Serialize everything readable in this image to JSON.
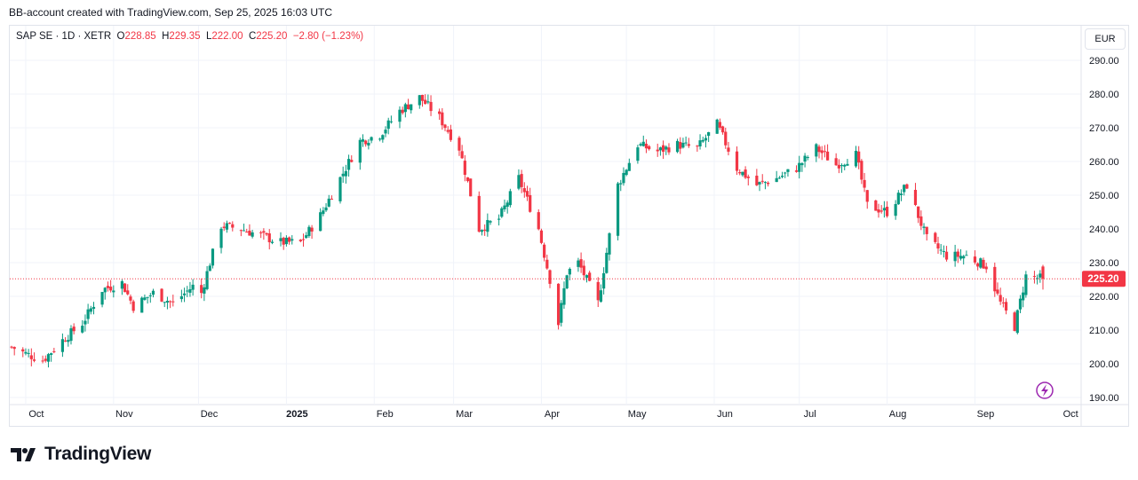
{
  "header": {
    "credit": "BB-account created with TradingView.com, Sep 25, 2025 16:03 UTC"
  },
  "legend": {
    "symbol": "SAP SE · 1D · XETR",
    "o_label": "O",
    "o_value": "228.85",
    "h_label": "H",
    "h_value": "229.35",
    "l_label": "L",
    "l_value": "222.00",
    "c_label": "C",
    "c_value": "225.20",
    "change": "−2.80 (−1.23%)"
  },
  "currency": "EUR",
  "footer": {
    "brand": "TradingView"
  },
  "colors": {
    "up": "#089981",
    "down": "#f23645",
    "grid": "#f0f3fa",
    "text": "#131722"
  },
  "chart_data": {
    "type": "candlestick",
    "y_ticks": [
      "290.00",
      "280.00",
      "270.00",
      "260.00",
      "250.00",
      "240.00",
      "230.00",
      "220.00",
      "210.00",
      "200.00",
      "190.00"
    ],
    "ylim": [
      187,
      295
    ],
    "x_ticks": [
      "Oct",
      "Nov",
      "Dec",
      "2025",
      "Feb",
      "Mar",
      "Apr",
      "May",
      "Jun",
      "Jul",
      "Aug",
      "Sep",
      "Oct"
    ],
    "last_price": 225.2,
    "last_price_label": "225.20",
    "close_path": [
      [
        "2024-09-26",
        205
      ],
      [
        "2024-10-01",
        203
      ],
      [
        "2024-10-07",
        201
      ],
      [
        "2024-10-14",
        207
      ],
      [
        "2024-10-21",
        212
      ],
      [
        "2024-10-28",
        222
      ],
      [
        "2024-11-04",
        224
      ],
      [
        "2024-11-08",
        217
      ],
      [
        "2024-11-15",
        221
      ],
      [
        "2024-11-22",
        218
      ],
      [
        "2024-11-29",
        223
      ],
      [
        "2024-12-02",
        221
      ],
      [
        "2024-12-05",
        230
      ],
      [
        "2024-12-09",
        241
      ],
      [
        "2024-12-16",
        240
      ],
      [
        "2024-12-23",
        238
      ],
      [
        "2024-12-30",
        236
      ],
      [
        "2025-01-06",
        236
      ],
      [
        "2025-01-13",
        244
      ],
      [
        "2025-01-20",
        255
      ],
      [
        "2025-01-27",
        266
      ],
      [
        "2025-02-03",
        268
      ],
      [
        "2025-02-10",
        275
      ],
      [
        "2025-02-17",
        279
      ],
      [
        "2025-02-24",
        273
      ],
      [
        "2025-03-03",
        264
      ],
      [
        "2025-03-10",
        240
      ],
      [
        "2025-03-17",
        243
      ],
      [
        "2025-03-24",
        255
      ],
      [
        "2025-03-31",
        240
      ],
      [
        "2025-04-04",
        225
      ],
      [
        "2025-04-07",
        212
      ],
      [
        "2025-04-10",
        227
      ],
      [
        "2025-04-14",
        230
      ],
      [
        "2025-04-21",
        218
      ],
      [
        "2025-04-28",
        253
      ],
      [
        "2025-05-05",
        265
      ],
      [
        "2025-05-12",
        263
      ],
      [
        "2025-05-19",
        265
      ],
      [
        "2025-05-26",
        264
      ],
      [
        "2025-06-02",
        271
      ],
      [
        "2025-06-09",
        258
      ],
      [
        "2025-06-16",
        253
      ],
      [
        "2025-06-23",
        255
      ],
      [
        "2025-06-30",
        258
      ],
      [
        "2025-07-07",
        264
      ],
      [
        "2025-07-14",
        259
      ],
      [
        "2025-07-21",
        262
      ],
      [
        "2025-07-25",
        247
      ],
      [
        "2025-08-01",
        245
      ],
      [
        "2025-08-08",
        253
      ],
      [
        "2025-08-15",
        237
      ],
      [
        "2025-08-22",
        232
      ],
      [
        "2025-08-29",
        232
      ],
      [
        "2025-09-05",
        229
      ],
      [
        "2025-09-10",
        218
      ],
      [
        "2025-09-15",
        211
      ],
      [
        "2025-09-19",
        226
      ],
      [
        "2025-09-25",
        225.2
      ]
    ]
  }
}
